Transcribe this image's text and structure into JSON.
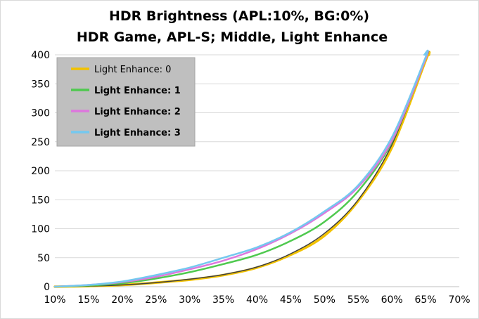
{
  "chart_data": {
    "type": "line",
    "title": "HDR Brightness (APL:10%, BG:0%)",
    "subtitle": "HDR Game, APL-S; Middle, Light Enhance",
    "xlabel": "",
    "ylabel": "",
    "xlim": [
      0.1,
      0.7
    ],
    "ylim": [
      0,
      400
    ],
    "x_ticks": [
      "10%",
      "15%",
      "20%",
      "25%",
      "30%",
      "35%",
      "40%",
      "45%",
      "50%",
      "55%",
      "60%",
      "65%",
      "70%"
    ],
    "y_ticks": [
      "0",
      "50",
      "100",
      "150",
      "200",
      "250",
      "300",
      "350",
      "400"
    ],
    "grid": "horizontal",
    "legend_position": "top-left",
    "series": [
      {
        "name": "Light Enhance: 0",
        "color": "#f2c200",
        "bold_label": false,
        "x": [
          0.1,
          0.15,
          0.2,
          0.25,
          0.3,
          0.35,
          0.4,
          0.45,
          0.5,
          0.55,
          0.6,
          0.65,
          0.655
        ],
        "y": [
          0,
          1,
          3,
          7,
          12,
          20,
          33,
          55,
          88,
          148,
          240,
          390,
          400
        ]
      },
      {
        "name": "Light Enhance: 1",
        "color": "#4fc94f",
        "bold_label": true,
        "x": [
          0.1,
          0.15,
          0.2,
          0.25,
          0.3,
          0.35,
          0.4,
          0.45,
          0.5,
          0.55,
          0.6,
          0.65,
          0.65
        ],
        "y": [
          0,
          2,
          6,
          14,
          25,
          39,
          55,
          79,
          112,
          165,
          250,
          393,
          400
        ]
      },
      {
        "name": "Light Enhance: 2",
        "color": "#dd77dd",
        "bold_label": true,
        "x": [
          0.1,
          0.15,
          0.2,
          0.25,
          0.3,
          0.35,
          0.4,
          0.45,
          0.5,
          0.55,
          0.6,
          0.65,
          0.65
        ],
        "y": [
          0,
          3,
          8,
          17,
          30,
          45,
          65,
          92,
          127,
          172,
          252,
          393,
          400
        ]
      },
      {
        "name": "Light Enhance: 3",
        "color": "#74c8ef",
        "bold_label": true,
        "x": [
          0.1,
          0.15,
          0.2,
          0.25,
          0.3,
          0.35,
          0.4,
          0.45,
          0.5,
          0.55,
          0.6,
          0.65,
          0.648
        ],
        "y": [
          0,
          3,
          9,
          20,
          33,
          50,
          68,
          94,
          130,
          175,
          258,
          396,
          400
        ]
      },
      {
        "name": "",
        "color": "#404040",
        "bold_label": false,
        "x": [
          0.1,
          0.15,
          0.2,
          0.25,
          0.3,
          0.35,
          0.4,
          0.45,
          0.5,
          0.55,
          0.6,
          0.65,
          0.653
        ],
        "y": [
          0,
          1,
          3,
          7,
          13,
          21,
          34,
          57,
          92,
          150,
          245,
          393,
          400
        ]
      }
    ]
  }
}
